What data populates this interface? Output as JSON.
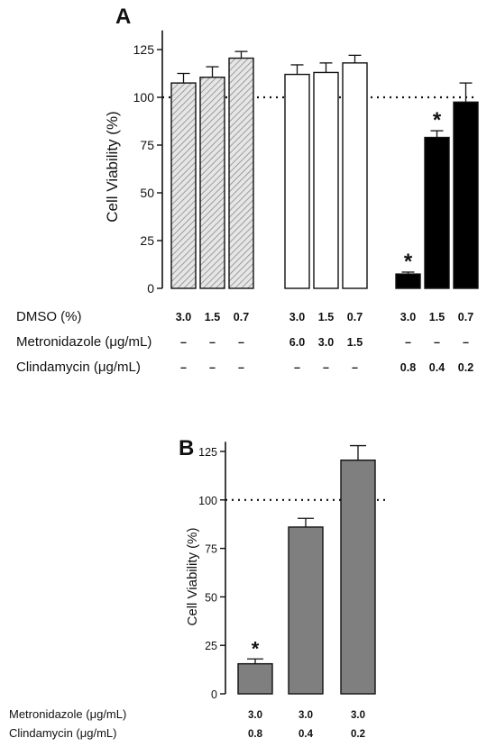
{
  "chart_data": [
    {
      "panel_label": "A",
      "type": "bar",
      "ylabel": "Cell Viability (%)",
      "ylim": [
        0,
        135
      ],
      "yticks": [
        0,
        25,
        50,
        75,
        100,
        125
      ],
      "reference_line": 100,
      "row_labels": [
        "DMSO (%)",
        "Metronidazole (μg/mL)",
        "Clindamycin (μg/mL)"
      ],
      "groups": [
        {
          "fill": "hatched",
          "bars": [
            {
              "value": 107.5,
              "error": 5,
              "star": false,
              "conditions": [
                "3.0",
                "–",
                "–"
              ]
            },
            {
              "value": 110.5,
              "error": 5.5,
              "star": false,
              "conditions": [
                "1.5",
                "–",
                "–"
              ]
            },
            {
              "value": 120.5,
              "error": 3.5,
              "star": false,
              "conditions": [
                "0.7",
                "–",
                "–"
              ]
            }
          ]
        },
        {
          "fill": "white",
          "bars": [
            {
              "value": 112,
              "error": 5,
              "star": false,
              "conditions": [
                "3.0",
                "6.0",
                "–"
              ]
            },
            {
              "value": 113,
              "error": 5,
              "star": false,
              "conditions": [
                "1.5",
                "3.0",
                "–"
              ]
            },
            {
              "value": 118,
              "error": 4,
              "star": false,
              "conditions": [
                "0.7",
                "1.5",
                "–"
              ]
            }
          ]
        },
        {
          "fill": "black",
          "bars": [
            {
              "value": 7.5,
              "error": 1,
              "star": true,
              "conditions": [
                "3.0",
                "–",
                "0.8"
              ]
            },
            {
              "value": 79,
              "error": 3.5,
              "star": true,
              "conditions": [
                "1.5",
                "–",
                "0.4"
              ]
            },
            {
              "value": 97.5,
              "error": 10,
              "star": false,
              "conditions": [
                "0.7",
                "–",
                "0.2"
              ]
            }
          ]
        }
      ],
      "star_symbol": "*"
    },
    {
      "panel_label": "B",
      "type": "bar",
      "ylabel": "Cell Viability (%)",
      "ylim": [
        0,
        130
      ],
      "yticks": [
        0,
        25,
        50,
        75,
        100,
        125
      ],
      "reference_line": 100,
      "bar_color": "#7f7f7f",
      "row_labels": [
        "Metronidazole (μg/mL)",
        "Clindamycin (μg/mL)"
      ],
      "bars": [
        {
          "value": 15.5,
          "error": 2.5,
          "star": true,
          "conditions": [
            "3.0",
            "0.8"
          ]
        },
        {
          "value": 86,
          "error": 4.5,
          "star": false,
          "conditions": [
            "3.0",
            "0.4"
          ]
        },
        {
          "value": 120.5,
          "error": 7.5,
          "star": false,
          "conditions": [
            "3.0",
            "0.2"
          ]
        }
      ],
      "star_symbol": "*"
    }
  ]
}
